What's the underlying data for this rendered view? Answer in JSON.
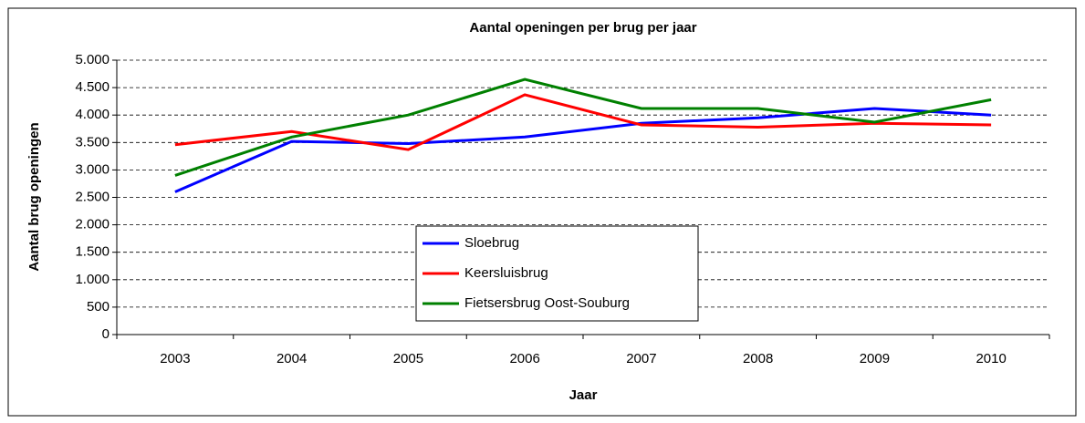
{
  "chart_data": {
    "type": "line",
    "title": "Aantal openingen per brug per jaar",
    "xlabel": "Jaar",
    "ylabel": "Aantal brug openingen",
    "categories": [
      "2003",
      "2004",
      "2005",
      "2006",
      "2007",
      "2008",
      "2009",
      "2010"
    ],
    "series": [
      {
        "name": "Sloebrug",
        "color": "#0000ff",
        "values": [
          2600,
          3520,
          3480,
          3600,
          3850,
          3950,
          4120,
          4000
        ]
      },
      {
        "name": "Keersluisbrug",
        "color": "#ff0000",
        "values": [
          3460,
          3700,
          3370,
          4370,
          3820,
          3780,
          3850,
          3820
        ]
      },
      {
        "name": "Fietsersbrug Oost-Souburg",
        "color": "#008000",
        "values": [
          2900,
          3600,
          4000,
          4650,
          4120,
          4120,
          3870,
          4280
        ]
      }
    ],
    "ylim": [
      0,
      5000
    ],
    "yticks": [
      0,
      500,
      {
        "value": 1000,
        "label": "1.000"
      },
      {
        "value": 1500,
        "label": "1.500"
      },
      {
        "value": 2000,
        "label": "2.000"
      },
      {
        "value": 2500,
        "label": "2.500"
      },
      {
        "value": 3000,
        "label": "3.000"
      },
      {
        "value": 3500,
        "label": "3.500"
      },
      {
        "value": 4000,
        "label": "4.000"
      },
      {
        "value": 4500,
        "label": "4.500"
      },
      {
        "value": 5000,
        "label": "5.000"
      }
    ],
    "grid": true,
    "legend": "center"
  }
}
